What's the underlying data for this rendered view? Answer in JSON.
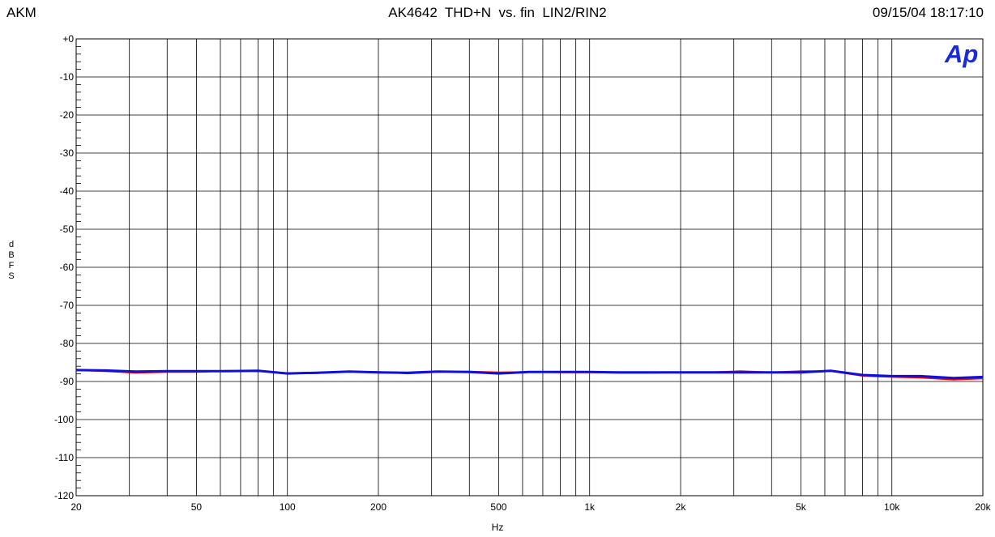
{
  "header": {
    "left": "AKM",
    "center": "AK4642  THD+N  vs. fin  LIN2/RIN2",
    "right": "09/15/04 18:17:10"
  },
  "logo_text": "Ap",
  "colors": {
    "series_red": "#ff0000",
    "series_blue": "#1010dd",
    "logo": "#1a2bd6",
    "grid": "#000000"
  },
  "chart_data": {
    "type": "line",
    "xlabel": "Hz",
    "ylabel": "dBFS",
    "xscale": "log",
    "xlim": [
      20,
      20000
    ],
    "ylim": [
      -120,
      0
    ],
    "grid": true,
    "x_ticks": [
      {
        "value": 20,
        "label": "20"
      },
      {
        "value": 50,
        "label": "50"
      },
      {
        "value": 100,
        "label": "100"
      },
      {
        "value": 200,
        "label": "200"
      },
      {
        "value": 500,
        "label": "500"
      },
      {
        "value": 1000,
        "label": "1k"
      },
      {
        "value": 2000,
        "label": "2k"
      },
      {
        "value": 5000,
        "label": "5k"
      },
      {
        "value": 10000,
        "label": "10k"
      },
      {
        "value": 20000,
        "label": "20k"
      }
    ],
    "y_ticks": [
      {
        "value": 0,
        "label": "+0"
      },
      {
        "value": -10,
        "label": "-10"
      },
      {
        "value": -20,
        "label": "-20"
      },
      {
        "value": -30,
        "label": "-30"
      },
      {
        "value": -40,
        "label": "-40"
      },
      {
        "value": -50,
        "label": "-50"
      },
      {
        "value": -60,
        "label": "-60"
      },
      {
        "value": -70,
        "label": "-70"
      },
      {
        "value": -80,
        "label": "-80"
      },
      {
        "value": -90,
        "label": "-90"
      },
      {
        "value": -100,
        "label": "-100"
      },
      {
        "value": -110,
        "label": "-110"
      },
      {
        "value": -120,
        "label": "-120"
      }
    ],
    "series": [
      {
        "color": "#ff0000",
        "x": [
          20,
          25,
          31.5,
          40,
          50,
          63,
          80,
          100,
          125,
          160,
          200,
          250,
          315,
          400,
          500,
          630,
          800,
          1000,
          1250,
          1600,
          2000,
          2500,
          3150,
          4000,
          5000,
          6300,
          8000,
          10000,
          12500,
          16000,
          20000
        ],
        "y": [
          -87.0,
          -87.3,
          -87.7,
          -87.5,
          -87.5,
          -87.2,
          -87.3,
          -87.8,
          -87.8,
          -87.4,
          -87.5,
          -87.9,
          -87.5,
          -87.4,
          -87.6,
          -87.5,
          -87.6,
          -87.6,
          -87.7,
          -87.7,
          -87.6,
          -87.6,
          -87.3,
          -87.6,
          -87.3,
          -87.3,
          -88.5,
          -88.8,
          -89.0,
          -89.5,
          -89.2
        ]
      },
      {
        "color": "#1010dd",
        "x": [
          20,
          25,
          31.5,
          40,
          50,
          63,
          80,
          100,
          125,
          160,
          200,
          250,
          315,
          400,
          500,
          630,
          800,
          1000,
          1250,
          1600,
          2000,
          2500,
          3150,
          4000,
          5000,
          6300,
          8000,
          10000,
          12500,
          16000,
          20000
        ],
        "y": [
          -87.0,
          -87.1,
          -87.4,
          -87.3,
          -87.3,
          -87.3,
          -87.2,
          -87.9,
          -87.7,
          -87.4,
          -87.6,
          -87.7,
          -87.4,
          -87.5,
          -87.9,
          -87.5,
          -87.5,
          -87.5,
          -87.6,
          -87.6,
          -87.6,
          -87.6,
          -87.6,
          -87.6,
          -87.6,
          -87.2,
          -88.3,
          -88.6,
          -88.6,
          -89.1,
          -88.8
        ]
      }
    ]
  }
}
